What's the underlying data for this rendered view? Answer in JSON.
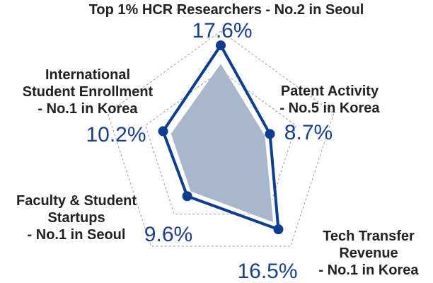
{
  "chart_data": {
    "type": "radar",
    "title": "",
    "axes": [
      {
        "name": "Top 1% HCR Researchers",
        "label_lines": [
          "Top 1% HCR Researchers - No.2 in Seoul"
        ],
        "value_text": "17.6%"
      },
      {
        "name": "Patent Activity",
        "label_lines": [
          "Patent Activity",
          "- No.5 in Korea"
        ],
        "value_text": "8.7%"
      },
      {
        "name": "Tech Transfer Revenue",
        "label_lines": [
          "Tech Transfer",
          "Revenue",
          "- No.1 in Korea"
        ],
        "value_text": "16.5%"
      },
      {
        "name": "Faculty & Student Startups",
        "label_lines": [
          "Faculty & Student",
          "Startups",
          "- No.1 in Seoul"
        ],
        "value_text": "9.6%"
      },
      {
        "name": "International Student Enrollment",
        "label_lines": [
          "International",
          "Student Enrollment",
          "- No.1 in Korea"
        ],
        "value_text": "10.2%"
      }
    ],
    "series": [
      {
        "values": [
          17.6,
          8.7,
          16.5,
          9.6,
          10.2
        ]
      },
      {
        "values": [
          14.5,
          7.8,
          15.0,
          8.6,
          8.8
        ]
      }
    ],
    "max": 20,
    "grid_levels": 3,
    "grid": true,
    "legend": "none"
  },
  "colors": {
    "series_line": "#0b3d91",
    "area_fill": "#a9b7cd",
    "grid": "#9a9a9a",
    "label_text": "#222222",
    "value_text": "#1a3f8f"
  }
}
